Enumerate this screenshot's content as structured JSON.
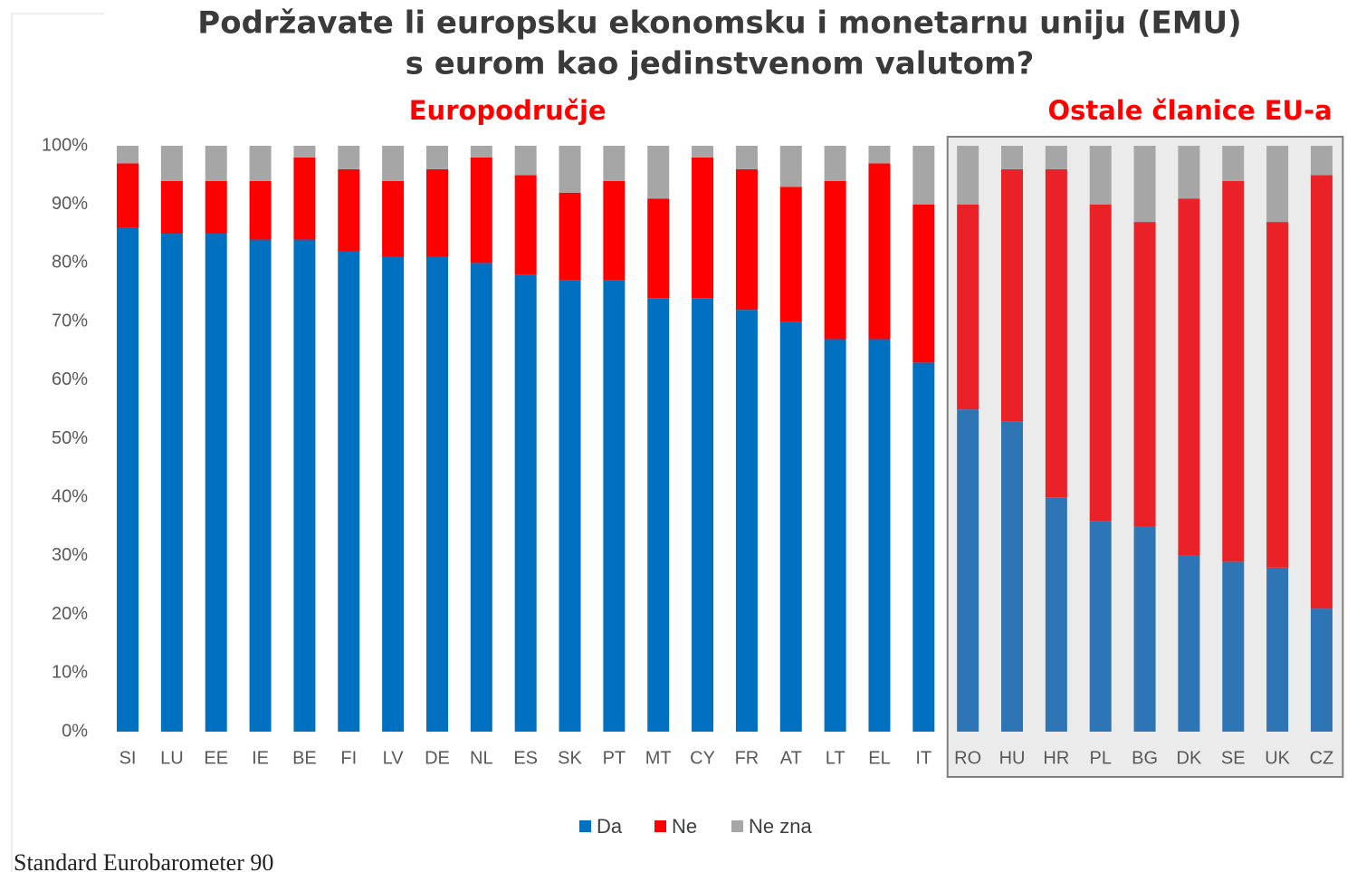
{
  "chart_data": {
    "type": "stacked_bar",
    "title": [
      "Podržavate li europsku ekonomsku i monetarnu uniju (EMU)",
      "s eurom kao jedinstvenom valutom?"
    ],
    "categories": [
      "SI",
      "LU",
      "EE",
      "IE",
      "BE",
      "FI",
      "LV",
      "DE",
      "NL",
      "ES",
      "SK",
      "PT",
      "MT",
      "CY",
      "FR",
      "AT",
      "LT",
      "EL",
      "IT",
      "RO",
      "HU",
      "HR",
      "PL",
      "BG",
      "DK",
      "SE",
      "UK",
      "CZ"
    ],
    "series": [
      {
        "name": "Da",
        "color": "#0070c0",
        "values": [
          86,
          85,
          85,
          84,
          84,
          82,
          81,
          81,
          80,
          78,
          77,
          77,
          74,
          74,
          72,
          70,
          67,
          67,
          63,
          55,
          53,
          40,
          36,
          35,
          30,
          29,
          28,
          21
        ]
      },
      {
        "name": "Ne",
        "color": "#ff0000",
        "values": [
          11,
          9,
          9,
          10,
          14,
          14,
          13,
          15,
          18,
          17,
          15,
          17,
          17,
          24,
          24,
          23,
          27,
          30,
          27,
          35,
          43,
          56,
          54,
          52,
          61,
          65,
          59,
          74
        ]
      },
      {
        "name": "Ne zna",
        "color": "#a6a6a6",
        "values": [
          3,
          6,
          6,
          6,
          2,
          4,
          6,
          4,
          2,
          5,
          8,
          6,
          9,
          2,
          4,
          7,
          6,
          3,
          10,
          10,
          4,
          4,
          10,
          13,
          9,
          6,
          13,
          5
        ]
      }
    ],
    "groups": [
      {
        "name": "Europodručje",
        "size": 19
      },
      {
        "name": "Ostale članice EU-a",
        "size": 9,
        "background": "#ebebeb",
        "series_colors": [
          "#2e75b6",
          "#ea2127",
          "#a6a6a6"
        ]
      }
    ],
    "ylim": [
      0,
      100
    ],
    "yticks": [
      {
        "value": 0,
        "label": "0%"
      },
      {
        "value": 10,
        "label": "10%"
      },
      {
        "value": 20,
        "label": "20%"
      },
      {
        "value": 30,
        "label": "30%"
      },
      {
        "value": 40,
        "label": "40%"
      },
      {
        "value": 50,
        "label": "50%"
      },
      {
        "value": 60,
        "label": "60%"
      },
      {
        "value": 70,
        "label": "70%"
      },
      {
        "value": 80,
        "label": "80%"
      },
      {
        "value": 90,
        "label": "90%"
      },
      {
        "value": 100,
        "label": "100%"
      }
    ],
    "legend": "bottom",
    "source": "Standard Eurobarometer 90"
  }
}
